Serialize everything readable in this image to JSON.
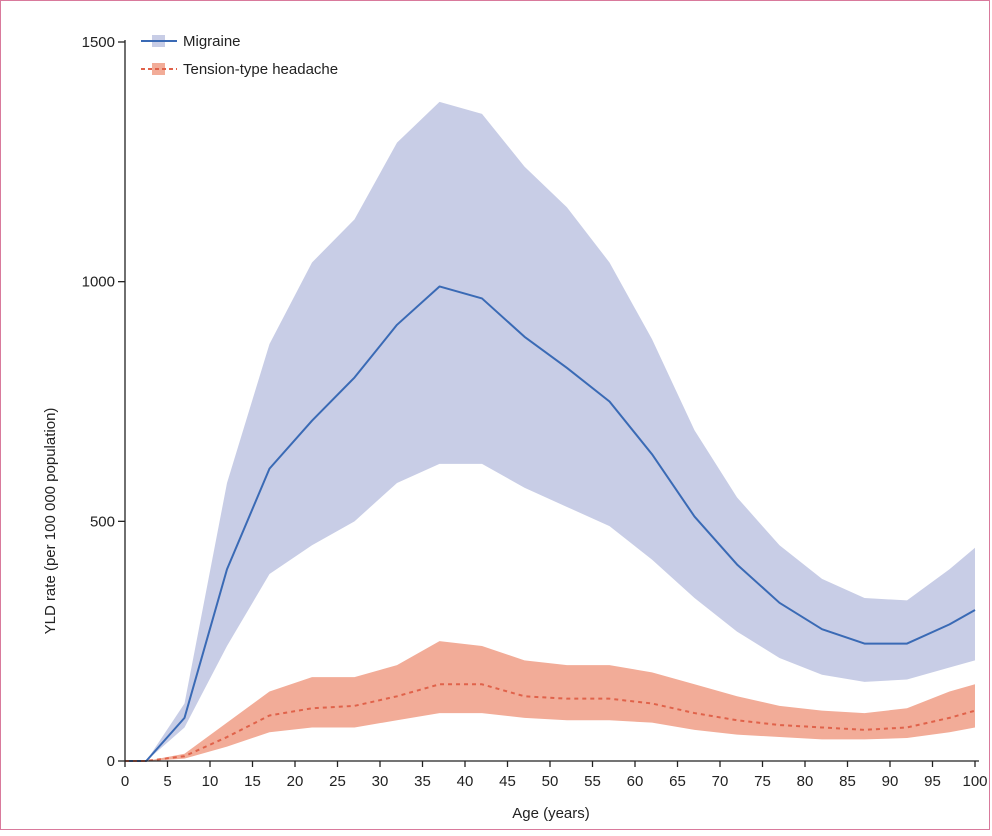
{
  "chart_data": {
    "type": "line",
    "title": "",
    "xlabel": "Age (years)",
    "ylabel": "YLD rate (per 100 000 population)",
    "xlim": [
      0,
      100
    ],
    "ylim": [
      0,
      1500
    ],
    "x_ticks": [
      0,
      5,
      10,
      15,
      20,
      25,
      30,
      35,
      40,
      45,
      50,
      55,
      60,
      65,
      70,
      75,
      80,
      85,
      90,
      95,
      100
    ],
    "y_ticks": [
      0,
      500,
      1000,
      1500
    ],
    "grid": false,
    "legend_position": "top-left",
    "series": [
      {
        "name": "Migraine",
        "color": "#3a6ab5",
        "band_color": "#c8cde6",
        "line_style": "solid",
        "x": [
          0,
          2.5,
          7,
          12,
          17,
          22,
          27,
          32,
          37,
          42,
          47,
          52,
          57,
          62,
          67,
          72,
          77,
          82,
          87,
          92,
          97,
          100
        ],
        "values": [
          0,
          0,
          90,
          400,
          610,
          710,
          800,
          910,
          990,
          965,
          885,
          820,
          750,
          640,
          510,
          410,
          330,
          275,
          245,
          245,
          285,
          315
        ],
        "lower": [
          0,
          0,
          70,
          240,
          390,
          450,
          500,
          580,
          620,
          620,
          570,
          530,
          490,
          420,
          340,
          270,
          215,
          180,
          165,
          170,
          195,
          210
        ],
        "upper": [
          0,
          0,
          120,
          580,
          870,
          1040,
          1130,
          1290,
          1375,
          1350,
          1240,
          1155,
          1040,
          880,
          690,
          550,
          450,
          380,
          340,
          335,
          400,
          445
        ]
      },
      {
        "name": "Tension-type headache",
        "color": "#e0624a",
        "band_color": "#f2ac98",
        "line_style": "dashed",
        "x": [
          0,
          2.5,
          7,
          12,
          17,
          22,
          27,
          32,
          37,
          42,
          47,
          52,
          57,
          62,
          67,
          72,
          77,
          82,
          87,
          92,
          97,
          100
        ],
        "values": [
          0,
          0,
          10,
          50,
          95,
          110,
          115,
          135,
          160,
          160,
          135,
          130,
          130,
          120,
          100,
          85,
          75,
          70,
          65,
          70,
          90,
          105
        ],
        "lower": [
          0,
          0,
          5,
          30,
          60,
          70,
          70,
          85,
          100,
          100,
          90,
          85,
          85,
          80,
          65,
          55,
          50,
          45,
          45,
          48,
          60,
          70
        ],
        "upper": [
          0,
          0,
          15,
          80,
          145,
          175,
          175,
          200,
          250,
          240,
          210,
          200,
          200,
          185,
          160,
          135,
          115,
          105,
          100,
          110,
          145,
          160
        ]
      }
    ]
  }
}
